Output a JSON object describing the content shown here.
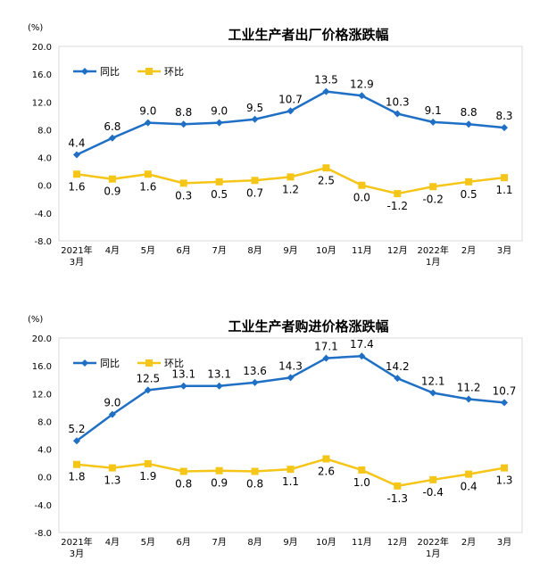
{
  "chart_data": [
    {
      "type": "line",
      "title": "工业生产者出厂价格涨跌幅",
      "unit": "(%)",
      "categories": [
        "2021年\n3月",
        "4月",
        "5月",
        "6月",
        "7月",
        "8月",
        "9月",
        "10月",
        "11月",
        "12月",
        "2022年\n1月",
        "2月",
        "3月"
      ],
      "series": [
        {
          "name": "同比",
          "color": "#1F6FC5",
          "marker": "diamond",
          "values": [
            4.4,
            6.8,
            9.0,
            8.8,
            9.0,
            9.5,
            10.7,
            13.5,
            12.9,
            10.3,
            9.1,
            8.8,
            8.3
          ]
        },
        {
          "name": "环比",
          "color": "#F5C518",
          "marker": "square",
          "values": [
            1.6,
            0.9,
            1.6,
            0.3,
            0.5,
            0.7,
            1.2,
            2.5,
            0.0,
            -1.2,
            -0.2,
            0.5,
            1.1
          ]
        }
      ],
      "ylim": [
        -8.0,
        20.0
      ],
      "yticks": [
        "20.0",
        "16.0",
        "12.0",
        "8.0",
        "4.0",
        "0.0",
        "-4.0",
        "-8.0"
      ],
      "legend": "top-left",
      "grid": false
    },
    {
      "type": "line",
      "title": "工业生产者购进价格涨跌幅",
      "unit": "(%)",
      "categories": [
        "2021年\n3月",
        "4月",
        "5月",
        "6月",
        "7月",
        "8月",
        "9月",
        "10月",
        "11月",
        "12月",
        "2022年\n1月",
        "2月",
        "3月"
      ],
      "series": [
        {
          "name": "同比",
          "color": "#1F6FC5",
          "marker": "diamond",
          "values": [
            5.2,
            9.0,
            12.5,
            13.1,
            13.1,
            13.6,
            14.3,
            17.1,
            17.4,
            14.2,
            12.1,
            11.2,
            10.7
          ]
        },
        {
          "name": "环比",
          "color": "#F5C518",
          "marker": "square",
          "values": [
            1.8,
            1.3,
            1.9,
            0.8,
            0.9,
            0.8,
            1.1,
            2.6,
            1.0,
            -1.3,
            -0.4,
            0.4,
            1.3
          ]
        }
      ],
      "ylim": [
        -8.0,
        20.0
      ],
      "yticks": [
        "20.0",
        "16.0",
        "12.0",
        "8.0",
        "4.0",
        "0.0",
        "-4.0",
        "-8.0"
      ],
      "legend": "top-left",
      "grid": false
    }
  ]
}
